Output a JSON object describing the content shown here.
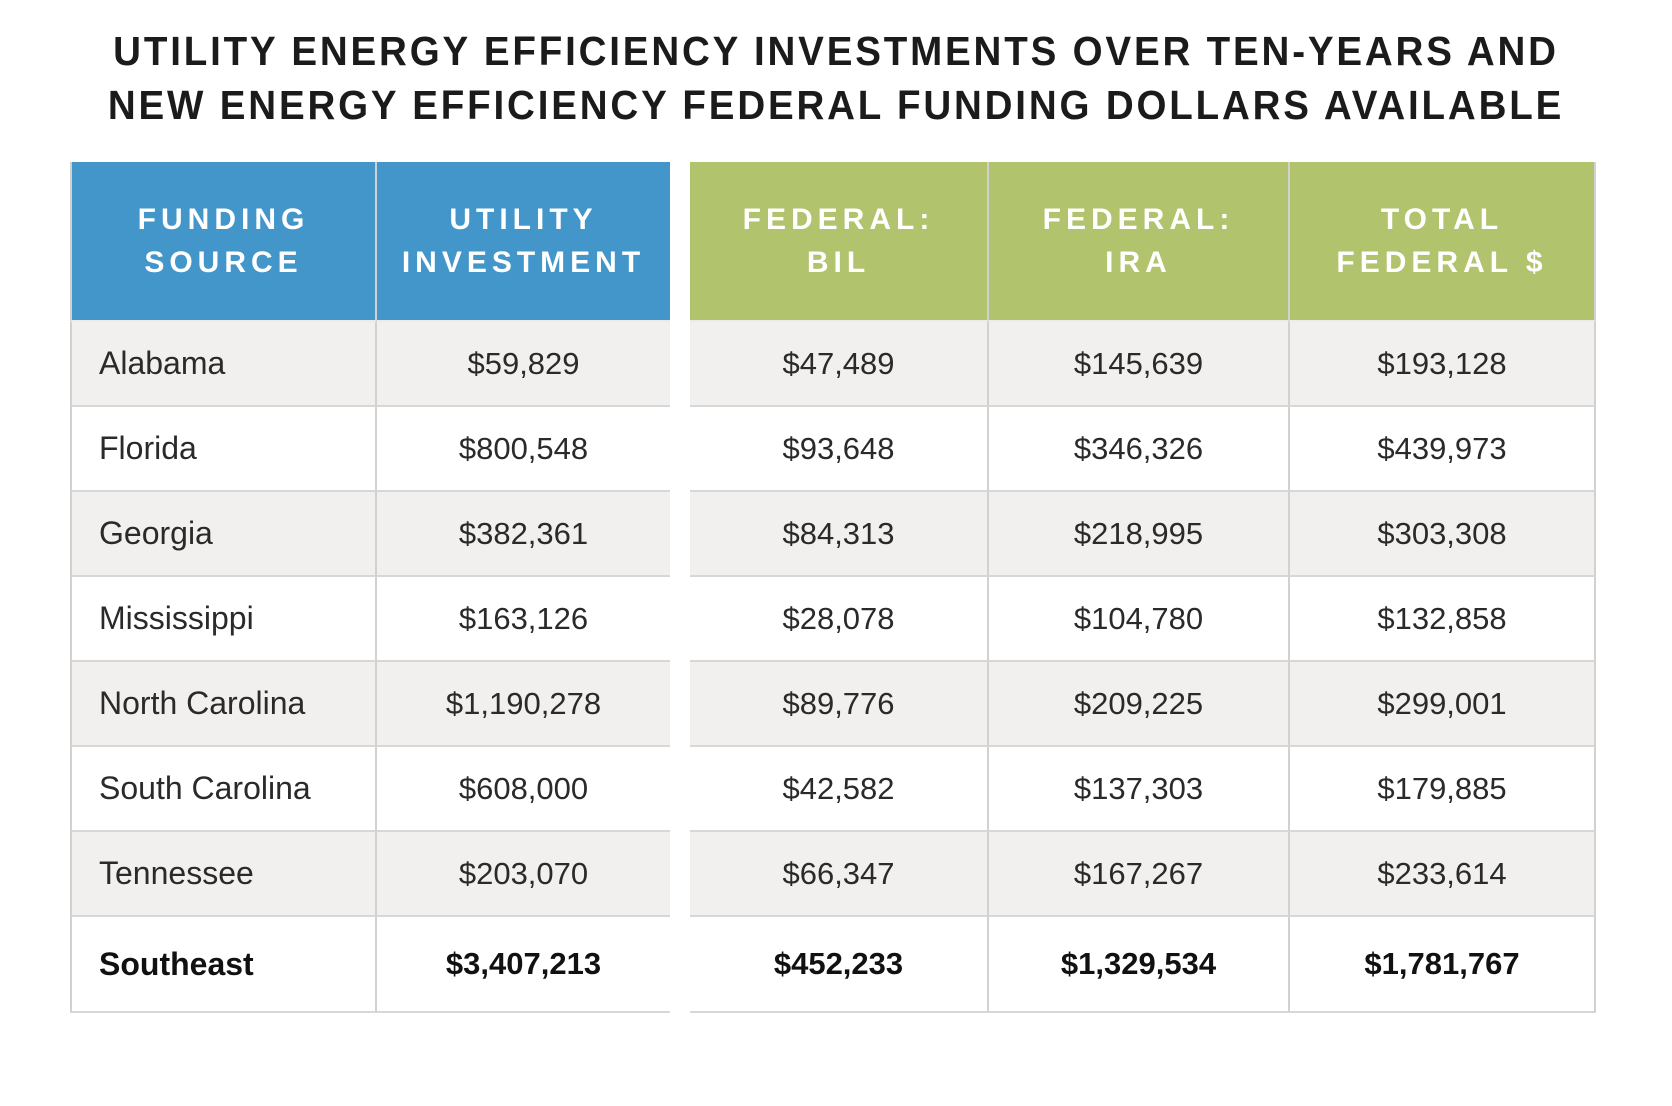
{
  "title": {
    "line1": "UTILITY ENERGY EFFICIENCY INVESTMENTS OVER TEN-YEARS AND",
    "line2": "NEW ENERGY EFFICIENCY FEDERAL FUNDING DOLLARS AVAILABLE"
  },
  "colors": {
    "header_blue": "#4396CA",
    "header_green": "#B2C36E",
    "row_stripe": "#F1F0EF",
    "row_white": "#FFFFFF",
    "border_gray": "#D8D7D5",
    "header_text": "#FFFFFF",
    "body_text": "#2A2A2A"
  },
  "table": {
    "columns": [
      {
        "key": "state",
        "label": "FUNDING\nSOURCE",
        "group": "blue"
      },
      {
        "key": "utility",
        "label": "UTILITY\nINVESTMENT",
        "group": "blue"
      },
      {
        "key": "bil",
        "label": "FEDERAL:\nBIL",
        "group": "green"
      },
      {
        "key": "ira",
        "label": "FEDERAL:\nIRA",
        "group": "green"
      },
      {
        "key": "total",
        "label": "TOTAL\nFEDERAL $",
        "group": "green"
      }
    ],
    "rows": [
      {
        "state": "Alabama",
        "utility": "$59,829",
        "bil": "$47,489",
        "ira": "$145,639",
        "total": "$193,128"
      },
      {
        "state": "Florida",
        "utility": "$800,548",
        "bil": "$93,648",
        "ira": "$346,326",
        "total": "$439,973"
      },
      {
        "state": "Georgia",
        "utility": "$382,361",
        "bil": "$84,313",
        "ira": "$218,995",
        "total": "$303,308"
      },
      {
        "state": "Mississippi",
        "utility": "$163,126",
        "bil": "$28,078",
        "ira": "$104,780",
        "total": "$132,858"
      },
      {
        "state": "North Carolina",
        "utility": "$1,190,278",
        "bil": "$89,776",
        "ira": "$209,225",
        "total": "$299,001"
      },
      {
        "state": "South Carolina",
        "utility": "$608,000",
        "bil": "$42,582",
        "ira": "$137,303",
        "total": "$179,885"
      },
      {
        "state": "Tennessee",
        "utility": "$203,070",
        "bil": "$66,347",
        "ira": "$167,267",
        "total": "$233,614"
      }
    ],
    "total_row": {
      "state": "Southeast",
      "utility": "$3,407,213",
      "bil": "$452,233",
      "ira": "$1,329,534",
      "total": "$1,781,767"
    }
  },
  "chart_data": {
    "type": "table",
    "title": "UTILITY ENERGY EFFICIENCY INVESTMENTS OVER TEN-YEARS AND NEW ENERGY EFFICIENCY FEDERAL FUNDING DOLLARS AVAILABLE",
    "columns": [
      "Funding Source",
      "Utility Investment",
      "Federal: BIL",
      "Federal: IRA",
      "Total Federal $"
    ],
    "rows": [
      [
        "Alabama",
        59829,
        47489,
        145639,
        193128
      ],
      [
        "Florida",
        800548,
        93648,
        346326,
        439973
      ],
      [
        "Georgia",
        382361,
        84313,
        218995,
        303308
      ],
      [
        "Mississippi",
        163126,
        28078,
        104780,
        132858
      ],
      [
        "North Carolina",
        1190278,
        89776,
        209225,
        299001
      ],
      [
        "South Carolina",
        608000,
        42582,
        137303,
        179885
      ],
      [
        "Tennessee",
        203070,
        66347,
        167267,
        233614
      ],
      [
        "Southeast",
        3407213,
        452233,
        1329534,
        1781767
      ]
    ],
    "units": "USD thousands (as displayed)",
    "layout": {
      "header_groups": {
        "blue": [
          "Funding Source",
          "Utility Investment"
        ],
        "green": [
          "Federal: BIL",
          "Federal: IRA",
          "Total Federal $"
        ]
      },
      "striped_rows": true,
      "bold_total_row": "Southeast"
    }
  }
}
